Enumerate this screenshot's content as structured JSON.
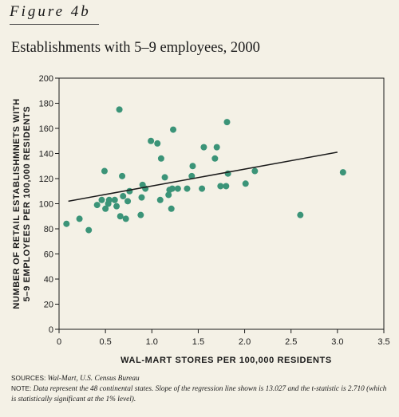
{
  "figure_label": "Figure 4b",
  "footer": {
    "sources_label": "SOURCES: ",
    "sources_text": "Wal-Mart, U.S. Census Bureau",
    "note_label": "NOTE: ",
    "note_text": "Data represent the 48 continental states. Slope of the regression line shown is 13.027 and the t-statistic is 2.710 (which is statistically significant at the 1% level)."
  },
  "colors": {
    "point": "#3b9478",
    "line": "#1a1a1a",
    "background": "#f4f1e6"
  },
  "chart_data": {
    "type": "scatter",
    "title": "Establishments with 5–9 employees, 2000",
    "xlabel": "WAL-MART STORES PER 100,000 RESIDENTS",
    "ylabel_lines": [
      "NUMBER OF RETAIL ESTABLISHMNETS WITH",
      "5–9 EMPLOYEES PER 100,000 RESIDENTS"
    ],
    "xlim": [
      0,
      3.5
    ],
    "ylim": [
      0,
      200
    ],
    "x_ticks": [
      0,
      0.5,
      1.0,
      1.5,
      2.0,
      2.5,
      3.0,
      3.5
    ],
    "x_tick_labels": [
      "0",
      "0.5",
      "1.0",
      "1.5",
      "2.0",
      "2.5",
      "3.0",
      "3.5"
    ],
    "y_ticks": [
      0,
      20,
      40,
      60,
      80,
      100,
      120,
      140,
      160,
      180,
      200
    ],
    "y_tick_labels": [
      "0",
      "20",
      "40",
      "60",
      "80",
      "100",
      "120",
      "140",
      "160",
      "180",
      "200"
    ],
    "grid": false,
    "points": [
      {
        "x": 0.08,
        "y": 84
      },
      {
        "x": 0.22,
        "y": 88
      },
      {
        "x": 0.32,
        "y": 79
      },
      {
        "x": 0.41,
        "y": 99
      },
      {
        "x": 0.46,
        "y": 103
      },
      {
        "x": 0.49,
        "y": 126
      },
      {
        "x": 0.5,
        "y": 96
      },
      {
        "x": 0.53,
        "y": 100
      },
      {
        "x": 0.54,
        "y": 103
      },
      {
        "x": 0.6,
        "y": 103
      },
      {
        "x": 0.62,
        "y": 98
      },
      {
        "x": 0.65,
        "y": 175
      },
      {
        "x": 0.66,
        "y": 90
      },
      {
        "x": 0.68,
        "y": 122
      },
      {
        "x": 0.69,
        "y": 106
      },
      {
        "x": 0.72,
        "y": 88
      },
      {
        "x": 0.74,
        "y": 102
      },
      {
        "x": 0.76,
        "y": 110
      },
      {
        "x": 0.88,
        "y": 91
      },
      {
        "x": 0.89,
        "y": 105
      },
      {
        "x": 0.9,
        "y": 115
      },
      {
        "x": 0.93,
        "y": 112
      },
      {
        "x": 0.99,
        "y": 150
      },
      {
        "x": 1.06,
        "y": 148
      },
      {
        "x": 1.09,
        "y": 103
      },
      {
        "x": 1.1,
        "y": 136
      },
      {
        "x": 1.14,
        "y": 121
      },
      {
        "x": 1.18,
        "y": 107
      },
      {
        "x": 1.19,
        "y": 111
      },
      {
        "x": 1.21,
        "y": 96
      },
      {
        "x": 1.22,
        "y": 112
      },
      {
        "x": 1.23,
        "y": 159
      },
      {
        "x": 1.28,
        "y": 112
      },
      {
        "x": 1.38,
        "y": 112
      },
      {
        "x": 1.43,
        "y": 122
      },
      {
        "x": 1.44,
        "y": 130
      },
      {
        "x": 1.54,
        "y": 112
      },
      {
        "x": 1.56,
        "y": 145
      },
      {
        "x": 1.68,
        "y": 136
      },
      {
        "x": 1.7,
        "y": 145
      },
      {
        "x": 1.74,
        "y": 114
      },
      {
        "x": 1.8,
        "y": 114
      },
      {
        "x": 1.81,
        "y": 165
      },
      {
        "x": 1.82,
        "y": 124
      },
      {
        "x": 2.01,
        "y": 116
      },
      {
        "x": 2.11,
        "y": 126
      },
      {
        "x": 2.6,
        "y": 91
      },
      {
        "x": 3.06,
        "y": 125
      }
    ],
    "regression_line": {
      "x": [
        0.1,
        3.0
      ],
      "y": [
        102,
        141
      ]
    }
  }
}
